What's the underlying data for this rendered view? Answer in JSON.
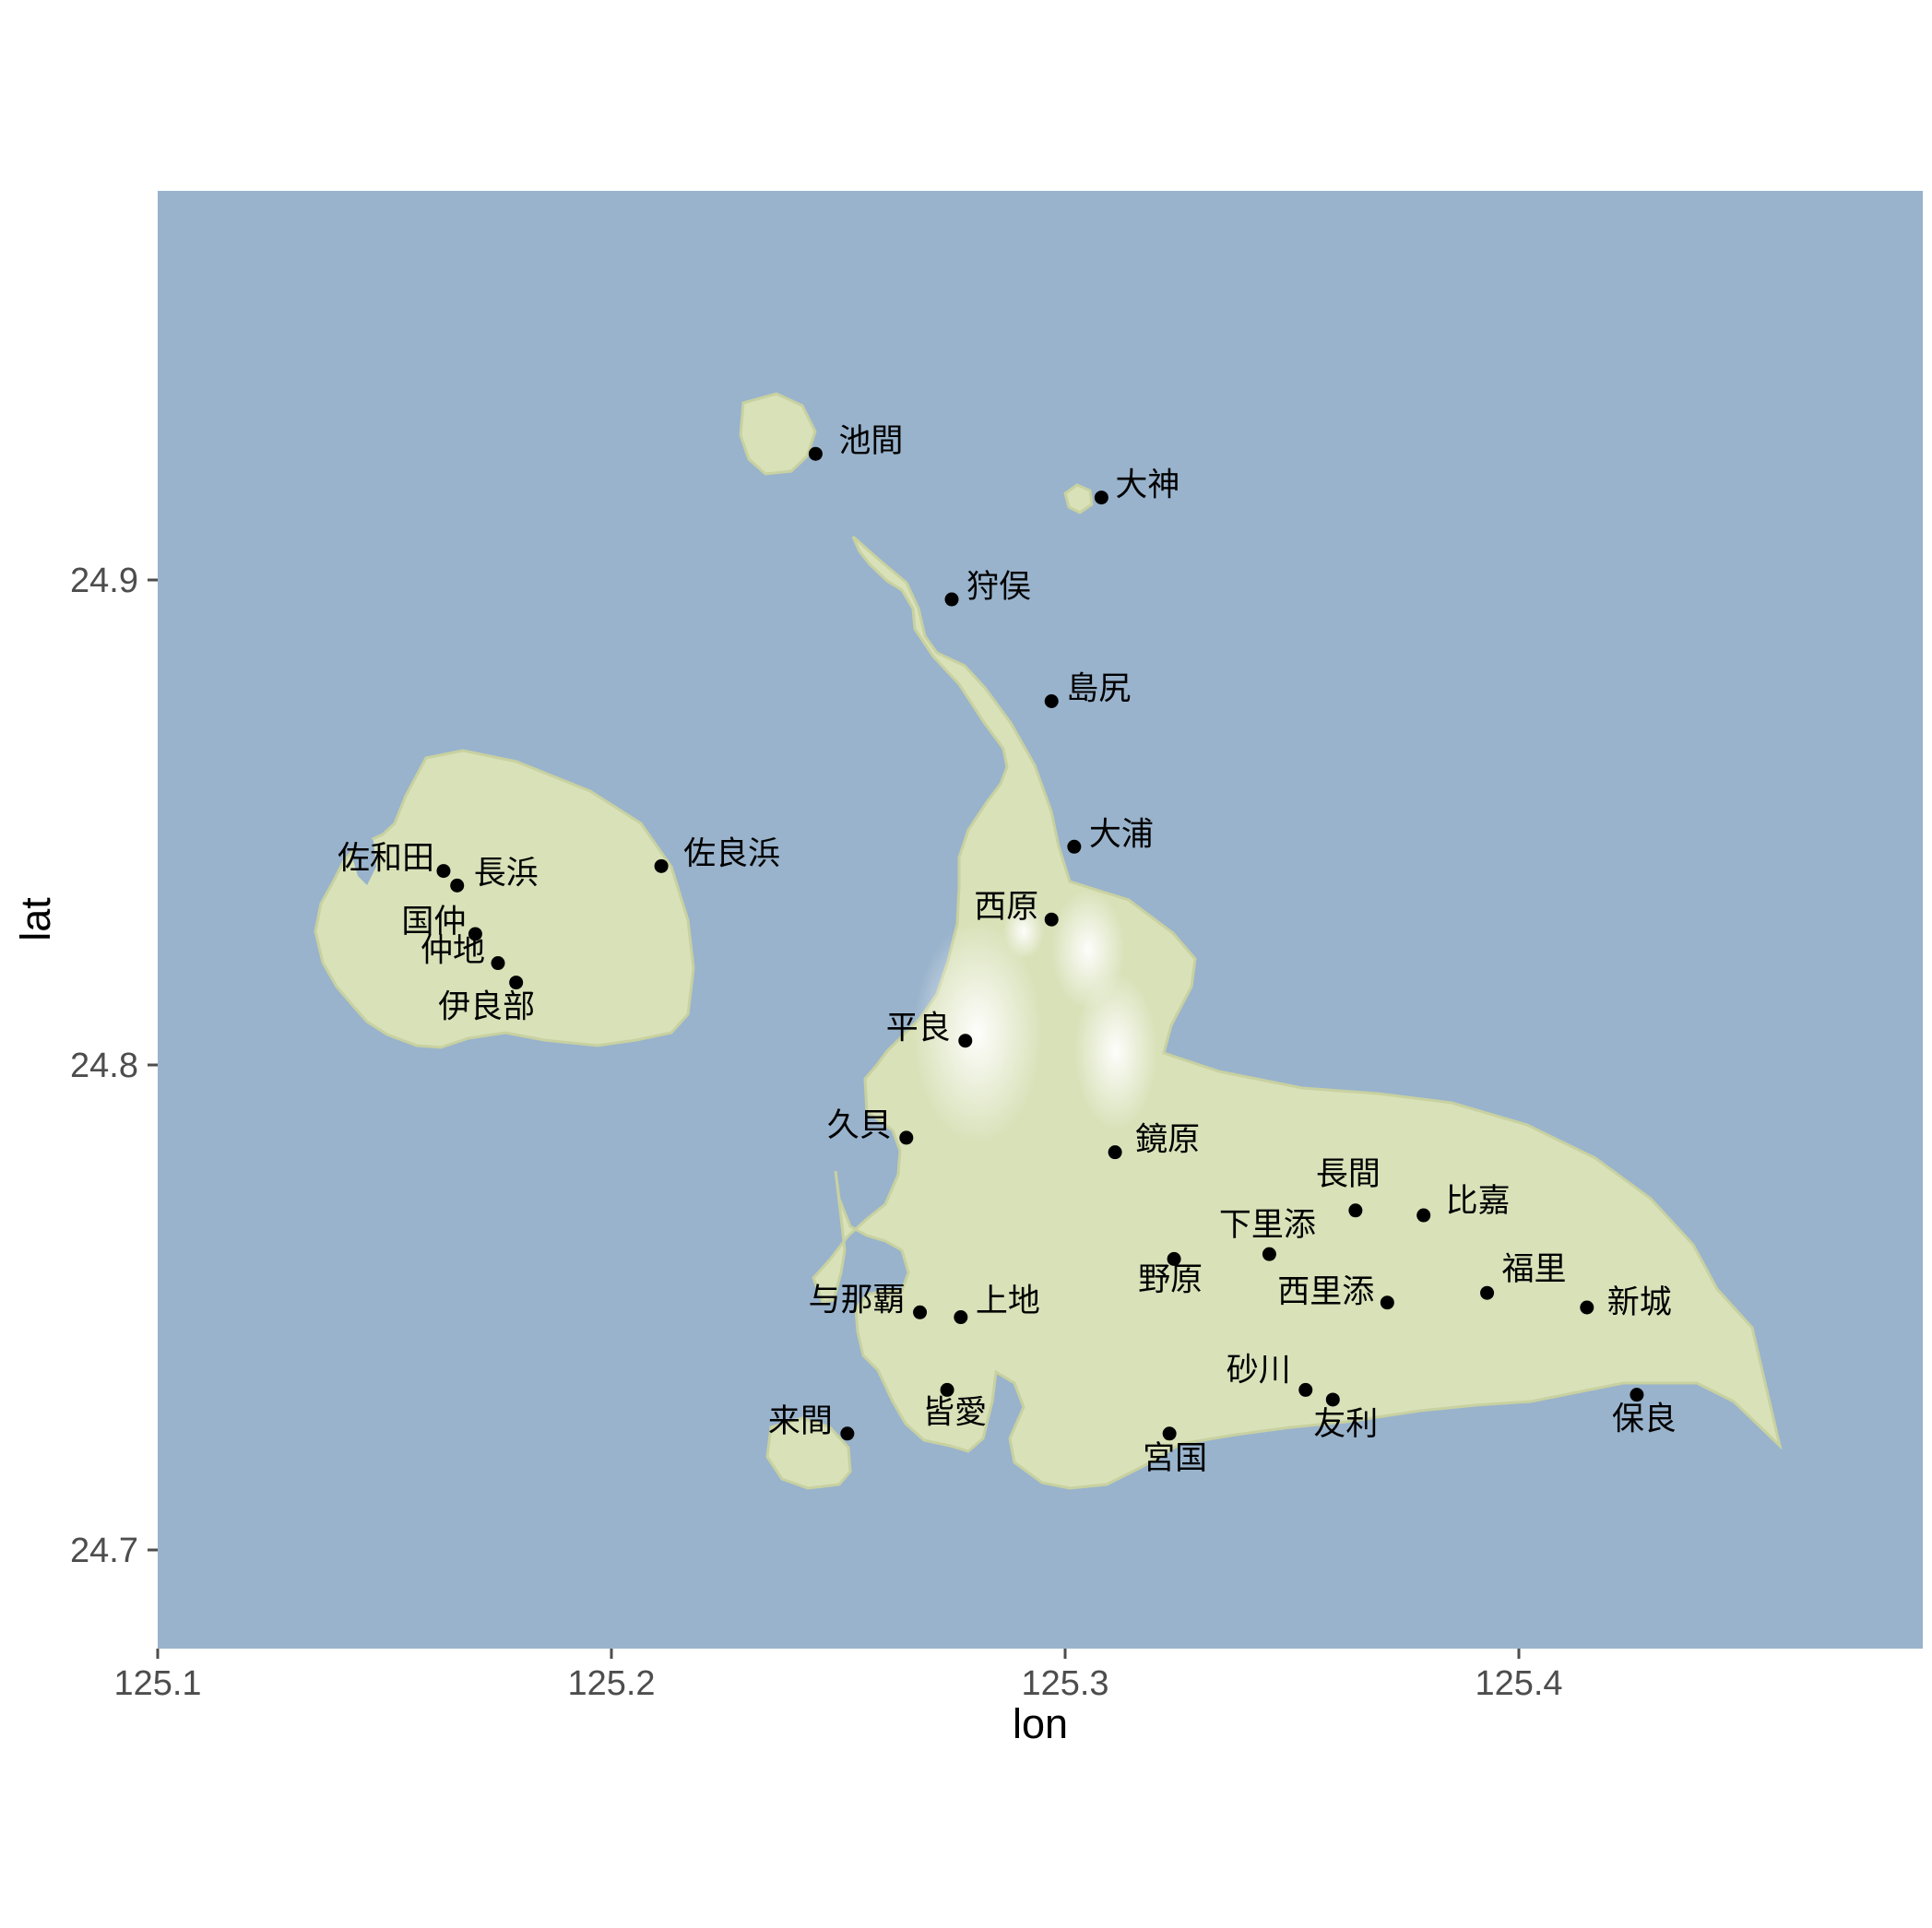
{
  "map": {
    "xlabel": "lon",
    "ylabel": "lat",
    "xlim": [
      125.1,
      125.4
    ],
    "ylim": [
      24.7,
      24.9
    ],
    "x_ticks": [
      {
        "value": 125.1,
        "label": "125.1"
      },
      {
        "value": 125.2,
        "label": "125.2"
      },
      {
        "value": 125.3,
        "label": "125.3"
      },
      {
        "value": 125.4,
        "label": "125.4"
      }
    ],
    "y_ticks": [
      {
        "value": 24.9,
        "label": "24.9"
      },
      {
        "value": 24.8,
        "label": "24.8"
      },
      {
        "value": 24.7,
        "label": "24.7"
      }
    ],
    "colors": {
      "sea": "#99b3cc",
      "land": "#d9e1b9",
      "land_edge": "#c8d1a0",
      "highland": "#f6f7ef",
      "point": "#000000",
      "tick": "#4d4d4d"
    }
  },
  "chart_data": {
    "type": "scatter",
    "xlabel": "lon",
    "ylabel": "lat",
    "points": [
      {
        "name": "池間",
        "lon": 125.245,
        "lat": 24.926
      },
      {
        "name": "大神",
        "lon": 125.308,
        "lat": 24.917
      },
      {
        "name": "狩俣",
        "lon": 125.275,
        "lat": 24.896
      },
      {
        "name": "島尻",
        "lon": 125.297,
        "lat": 24.875
      },
      {
        "name": "大浦",
        "lon": 125.302,
        "lat": 24.845
      },
      {
        "name": "西原",
        "lon": 125.297,
        "lat": 24.83
      },
      {
        "name": "佐良浜",
        "lon": 125.211,
        "lat": 24.841
      },
      {
        "name": "佐和田",
        "lon": 125.163,
        "lat": 24.84
      },
      {
        "name": "長浜",
        "lon": 125.166,
        "lat": 24.837
      },
      {
        "name": "国仲",
        "lon": 125.17,
        "lat": 24.827
      },
      {
        "name": "仲地",
        "lon": 125.175,
        "lat": 24.821
      },
      {
        "name": "伊良部",
        "lon": 125.179,
        "lat": 24.817
      },
      {
        "name": "平良",
        "lon": 125.278,
        "lat": 24.805
      },
      {
        "name": "久貝",
        "lon": 125.265,
        "lat": 24.785
      },
      {
        "name": "鏡原",
        "lon": 125.311,
        "lat": 24.782
      },
      {
        "name": "長間",
        "lon": 125.364,
        "lat": 24.77
      },
      {
        "name": "比嘉",
        "lon": 125.379,
        "lat": 24.769
      },
      {
        "name": "下里添",
        "lon": 125.345,
        "lat": 24.761
      },
      {
        "name": "野原",
        "lon": 125.324,
        "lat": 24.76
      },
      {
        "name": "西里添",
        "lon": 125.371,
        "lat": 24.751
      },
      {
        "name": "福里",
        "lon": 125.393,
        "lat": 24.753
      },
      {
        "name": "新城",
        "lon": 125.415,
        "lat": 24.75
      },
      {
        "name": "与那覇",
        "lon": 125.268,
        "lat": 24.749
      },
      {
        "name": "上地",
        "lon": 125.277,
        "lat": 24.748
      },
      {
        "name": "皆愛",
        "lon": 125.274,
        "lat": 24.733
      },
      {
        "name": "砂川",
        "lon": 125.353,
        "lat": 24.733
      },
      {
        "name": "友利",
        "lon": 125.359,
        "lat": 24.731
      },
      {
        "name": "保良",
        "lon": 125.426,
        "lat": 24.732
      },
      {
        "name": "宮国",
        "lon": 125.323,
        "lat": 24.724
      },
      {
        "name": "来間",
        "lon": 125.252,
        "lat": 24.724
      }
    ]
  }
}
